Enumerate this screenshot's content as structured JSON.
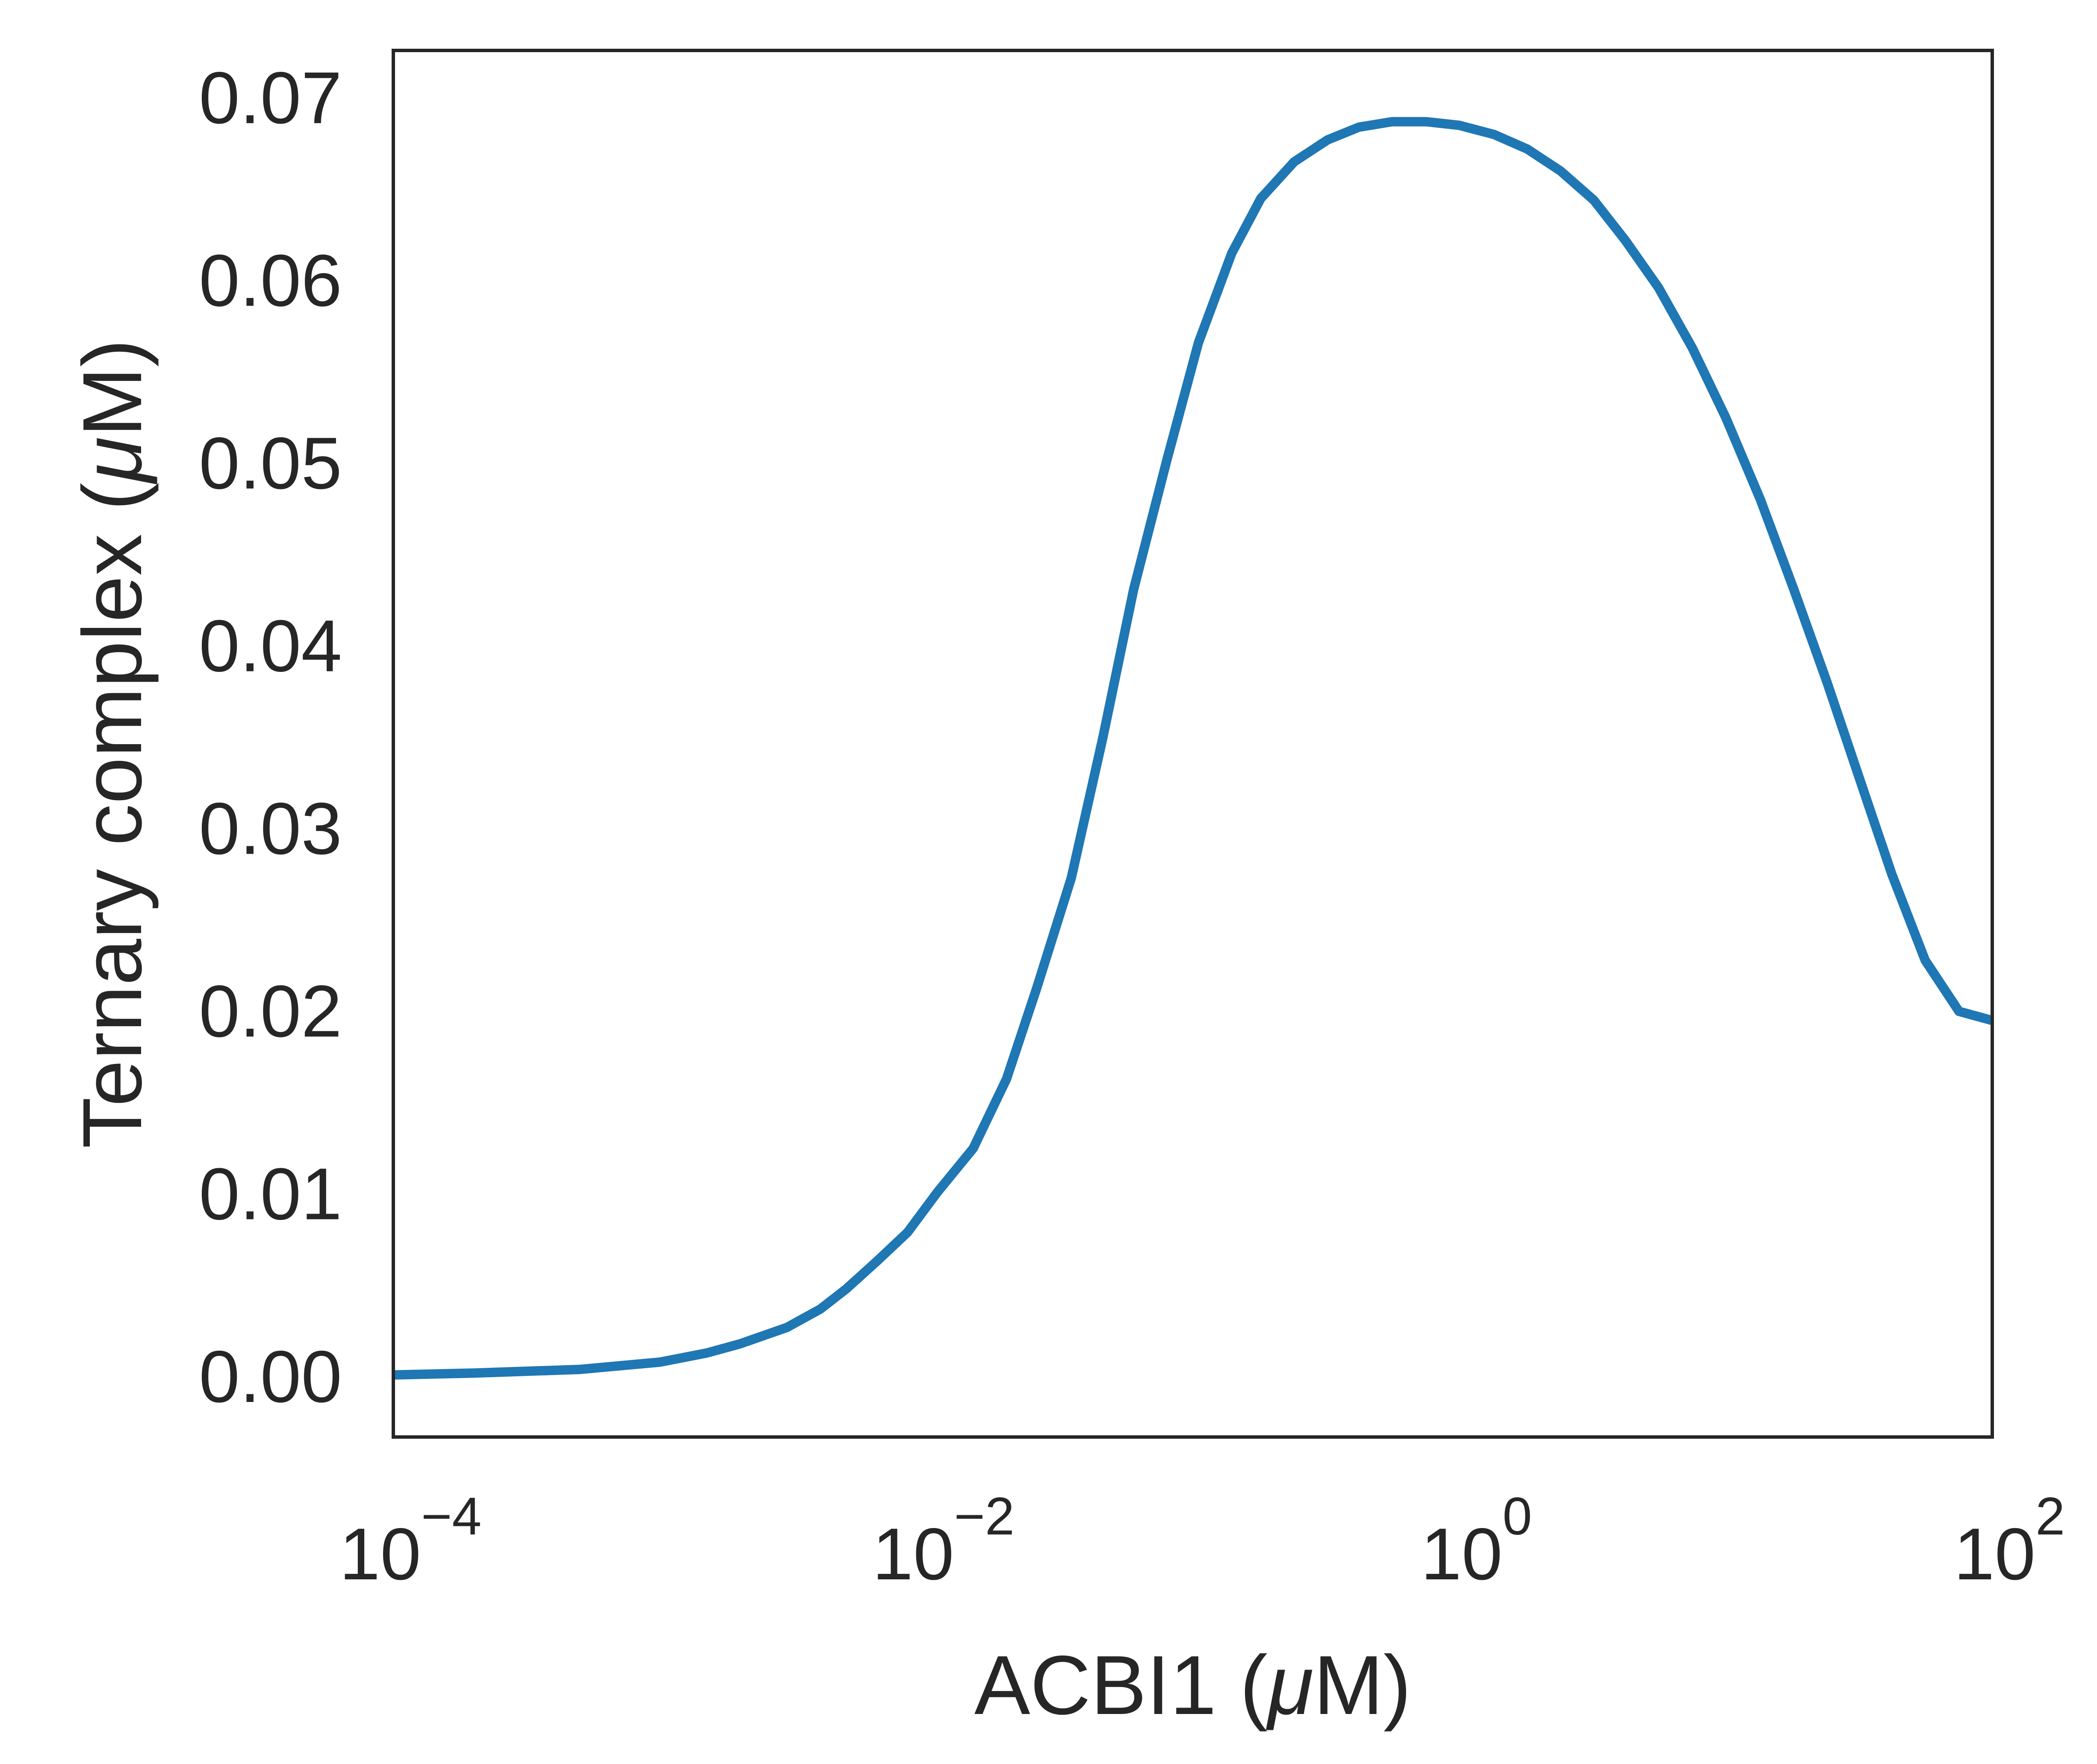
{
  "chart_data": {
    "type": "line",
    "xlabel_prefix": "ACBI1 (",
    "xlabel_mu": "μ",
    "xlabel_suffix": "M)",
    "ylabel_prefix": "Ternary complex (",
    "ylabel_mu": "μ",
    "ylabel_suffix": "M)",
    "xscale": "log",
    "xlim": [
      0.0001,
      100
    ],
    "ylim": [
      -0.0033,
      0.0726
    ],
    "x_ticks": [
      {
        "base": "10",
        "exp": "−4",
        "value": 0.0001
      },
      {
        "base": "10",
        "exp": "−2",
        "value": 0.01
      },
      {
        "base": "10",
        "exp": "0",
        "value": 1
      },
      {
        "base": "10",
        "exp": "2",
        "value": 100
      }
    ],
    "y_ticks": [
      "0.00",
      "0.01",
      "0.02",
      "0.03",
      "0.04",
      "0.05",
      "0.06",
      "0.07"
    ],
    "y_tick_values": [
      0,
      0.01,
      0.02,
      0.03,
      0.04,
      0.05,
      0.06,
      0.07
    ],
    "grid": false,
    "line_color": "#1f77b4",
    "series": [
      {
        "x": [
          0.0001,
          0.0002,
          0.0005,
          0.001,
          0.0015,
          0.002,
          0.003,
          0.004,
          0.005,
          0.0065,
          0.0085,
          0.011,
          0.015,
          0.02,
          0.026,
          0.035,
          0.046,
          0.06,
          0.08,
          0.105,
          0.14,
          0.18,
          0.24,
          0.32,
          0.42,
          0.56,
          0.75,
          1.0,
          1.35,
          1.8,
          2.4,
          3.2,
          4.2,
          5.6,
          7.5,
          10,
          13.5,
          18,
          24,
          32,
          42,
          56,
          75,
          100
        ],
        "y": [
          0.0001,
          0.0002,
          0.0004,
          0.0008,
          0.0013,
          0.0018,
          0.0027,
          0.0037,
          0.0048,
          0.0063,
          0.0079,
          0.0101,
          0.0125,
          0.0163,
          0.0213,
          0.0273,
          0.035,
          0.0431,
          0.0502,
          0.0566,
          0.0615,
          0.0645,
          0.0665,
          0.0677,
          0.0684,
          0.0687,
          0.0687,
          0.0685,
          0.068,
          0.0672,
          0.066,
          0.0644,
          0.0622,
          0.0596,
          0.0563,
          0.0525,
          0.048,
          0.0431,
          0.038,
          0.0326,
          0.0275,
          0.0228,
          0.02,
          0.0195
        ]
      }
    ]
  }
}
